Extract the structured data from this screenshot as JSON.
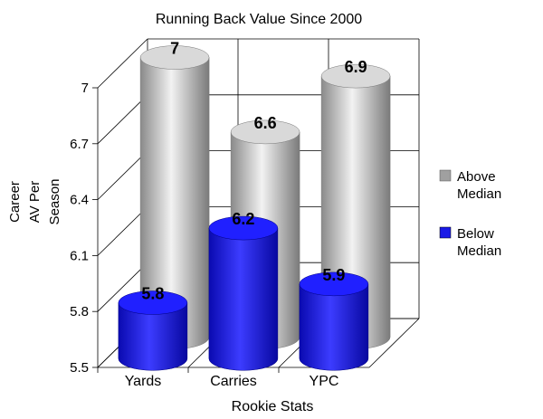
{
  "chart_data": {
    "type": "bar",
    "style": "3d-cylinder",
    "title": "Running Back Value Since 2000",
    "xlabel": "Rookie Stats",
    "ylabel": [
      "Career",
      "AV Per",
      "Season"
    ],
    "categories": [
      "Yards",
      "Carries",
      "YPC"
    ],
    "ylim": [
      5.5,
      7.0
    ],
    "yticks": [
      "5.5",
      "5.8",
      "6.1",
      "6.4",
      "6.7",
      "7"
    ],
    "ytick_values": [
      5.5,
      5.8,
      6.1,
      6.4,
      6.7,
      7.0
    ],
    "grid": true,
    "legend_position": "right",
    "series": [
      {
        "name": "Above Median",
        "values": [
          7.0,
          6.6,
          6.9
        ],
        "labels": [
          "7",
          "6.6",
          "6.9"
        ],
        "color": "#a0a0a0"
      },
      {
        "name": "Below Median",
        "values": [
          5.8,
          6.2,
          5.9
        ],
        "labels": [
          "5.8",
          "6.2",
          "5.9"
        ],
        "color": "#1a1ae6"
      }
    ]
  }
}
